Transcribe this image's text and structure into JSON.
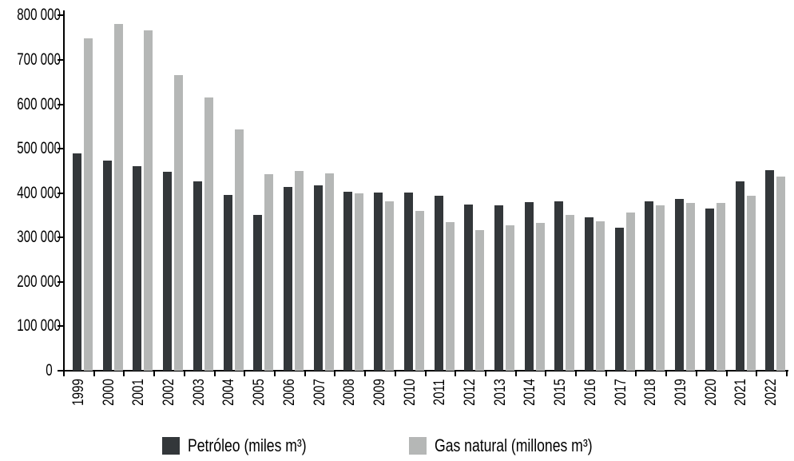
{
  "chart_data": {
    "type": "bar",
    "title": "",
    "xlabel": "",
    "ylabel": "",
    "categories": [
      "1999",
      "2000",
      "2001",
      "2002",
      "2003",
      "2004",
      "2005",
      "2006",
      "2007",
      "2008",
      "2009",
      "2010",
      "2011",
      "2012",
      "2013",
      "2014",
      "2015",
      "2016",
      "2017",
      "2018",
      "2019",
      "2020",
      "2021",
      "2022"
    ],
    "series": [
      {
        "name": "Petróleo (miles m³)",
        "color": "#33373a",
        "values": [
          490000,
          474000,
          461000,
          448000,
          427000,
          396000,
          351000,
          413000,
          418000,
          403000,
          401000,
          402000,
          394000,
          375000,
          372000,
          380000,
          382000,
          346000,
          322000,
          381000,
          386000,
          366000,
          427000,
          452000
        ]
      },
      {
        "name": "Gas natural (millones m³)",
        "color": "#b5b7b6",
        "values": [
          749000,
          781000,
          766000,
          666000,
          616000,
          543000,
          443000,
          449000,
          444000,
          400000,
          381000,
          360000,
          334000,
          317000,
          328000,
          333000,
          351000,
          337000,
          357000,
          373000,
          378000,
          377000,
          394000,
          437000
        ]
      }
    ],
    "ylim": [
      0,
      800000
    ],
    "ytick_step": 100000,
    "ytick_labels": [
      "0",
      "100 000",
      "200 000",
      "300 000",
      "400 000",
      "500 000",
      "600 000",
      "700 000",
      "800 000"
    ],
    "grid": false,
    "legend_position": "bottom",
    "bar_orientation": "vertical"
  }
}
